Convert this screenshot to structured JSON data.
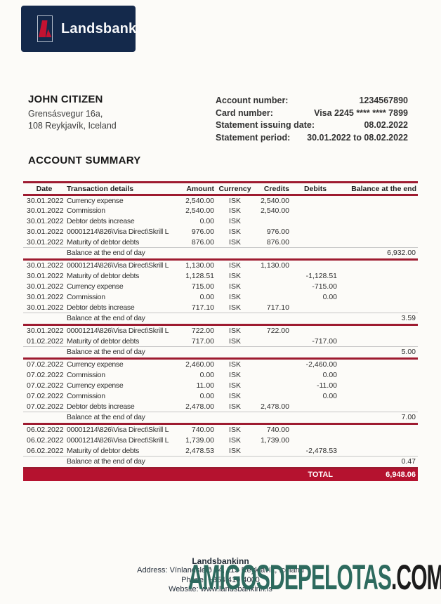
{
  "brand": {
    "logo_text": "Landsbanki",
    "navy": "#14294b",
    "logo_red": "#c41231",
    "line_red": "#9e1b30",
    "total_bar_red": "#b5122f"
  },
  "customer": {
    "name": "JOHN CITIZEN",
    "address_line1": "Grensásvegur 16a,",
    "address_line2": "108 Reykjavík, Iceland"
  },
  "account_info": {
    "rows": [
      {
        "label": "Account number:",
        "value": "1234567890"
      },
      {
        "label": "Card number:",
        "value": "Visa 2245 **** **** 7899"
      },
      {
        "label": "Statement issuing date:",
        "value": "08.02.2022"
      },
      {
        "label": "Statement period:",
        "value": "30.01.2022 to 08.02.2022"
      }
    ]
  },
  "summary": {
    "title": "ACCOUNT SUMMARY",
    "columns": [
      "Date",
      "Transaction details",
      "Amount",
      "Currency",
      "Credits",
      "Debits",
      "Balance at the end"
    ],
    "balance_label": "Balance at the end of day",
    "groups": [
      {
        "transactions": [
          {
            "date": "30.01.2022",
            "details": "Currency expense",
            "amount": "2,540.00",
            "currency": "ISK",
            "credits": "2,540.00",
            "debits": ""
          },
          {
            "date": "30.01.2022",
            "details": "Commission",
            "amount": "2,540.00",
            "currency": "ISK",
            "credits": "2,540.00",
            "debits": ""
          },
          {
            "date": "30.01.2022",
            "details": "Debtor debts increase",
            "amount": "0.00",
            "currency": "ISK",
            "credits": "",
            "debits": ""
          },
          {
            "date": "30.01.2022",
            "details": "00001214\\826\\Visa Direct\\Skrill L",
            "amount": "976.00",
            "currency": "ISK",
            "credits": "976.00",
            "debits": ""
          },
          {
            "date": "30.01.2022",
            "details": "Maturity of debtor debts",
            "amount": "876.00",
            "currency": "ISK",
            "credits": "876.00",
            "debits": ""
          }
        ],
        "balance": "6,932.00"
      },
      {
        "transactions": [
          {
            "date": "30.01.2022",
            "details": "00001214\\826\\Visa Direct\\Skrill L",
            "amount": "1,130.00",
            "currency": "ISK",
            "credits": "1,130.00",
            "debits": ""
          },
          {
            "date": "30.01.2022",
            "details": "Maturity of debtor debts",
            "amount": "1,128.51",
            "currency": "ISK",
            "credits": "",
            "debits": "-1,128.51"
          },
          {
            "date": "30.01.2022",
            "details": "Currency expense",
            "amount": "715.00",
            "currency": "ISK",
            "credits": "",
            "debits": "-715.00"
          },
          {
            "date": "30.01.2022",
            "details": "Commission",
            "amount": "0.00",
            "currency": "ISK",
            "credits": "",
            "debits": "0.00"
          },
          {
            "date": "30.01.2022",
            "details": "Debtor debts increase",
            "amount": "717.10",
            "currency": "ISK",
            "credits": "717.10",
            "debits": ""
          }
        ],
        "balance": "3.59"
      },
      {
        "transactions": [
          {
            "date": "30.01.2022",
            "details": "00001214\\826\\Visa Direct\\Skrill L",
            "amount": "722.00",
            "currency": "ISK",
            "credits": "722.00",
            "debits": ""
          },
          {
            "date": "01.02.2022",
            "details": "Maturity of debtor debts",
            "amount": "717.00",
            "currency": "ISK",
            "credits": "",
            "debits": "-717.00"
          }
        ],
        "balance": "5.00"
      },
      {
        "transactions": [
          {
            "date": "07.02.2022",
            "details": "Currency expense",
            "amount": "2,460.00",
            "currency": "ISK",
            "credits": "",
            "debits": "-2,460.00"
          },
          {
            "date": "07.02.2022",
            "details": "Commission",
            "amount": "0.00",
            "currency": "ISK",
            "credits": "",
            "debits": "0.00"
          },
          {
            "date": "07.02.2022",
            "details": "Currency expense",
            "amount": "11.00",
            "currency": "ISK",
            "credits": "",
            "debits": "-11.00"
          },
          {
            "date": "07.02.2022",
            "details": "Commission",
            "amount": "0.00",
            "currency": "ISK",
            "credits": "",
            "debits": "0.00"
          },
          {
            "date": "07.02.2022",
            "details": "Debtor debts increase",
            "amount": "2,478.00",
            "currency": "ISK",
            "credits": "2,478.00",
            "debits": ""
          }
        ],
        "balance": "7.00"
      },
      {
        "transactions": [
          {
            "date": "06.02.2022",
            "details": "00001214\\826\\Visa Direct\\Skrill L",
            "amount": "740.00",
            "currency": "ISK",
            "credits": "740.00",
            "debits": ""
          },
          {
            "date": "06.02.2022",
            "details": "00001214\\826\\Visa Direct\\Skrill L",
            "amount": "1,739.00",
            "currency": "ISK",
            "credits": "1,739.00",
            "debits": ""
          },
          {
            "date": "06.02.2022",
            "details": "Maturity of debtor debts",
            "amount": "2,478.53",
            "currency": "ISK",
            "credits": "",
            "debits": "-2,478.53"
          }
        ],
        "balance": "0.47"
      }
    ],
    "total_label": "TOTAL",
    "total_value": "6,948.06"
  },
  "footer": {
    "bank_name": "Landsbankinn",
    "address": "Address: Vínlandsleið 14, 113 Reykjavík, Iceland",
    "phone": "Phone: +354 410 4000",
    "website": "Website: www.landsbankinn.is"
  },
  "watermark": {
    "main": "AMIGOSDEPELOTAS",
    "suffix": ".COM",
    "main_color": "#2d6a5e",
    "suffix_color": "#1c1c1c"
  }
}
